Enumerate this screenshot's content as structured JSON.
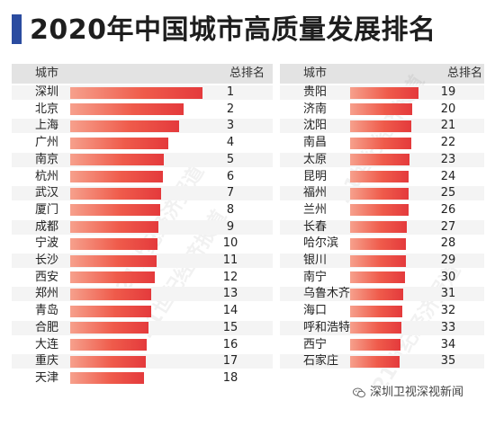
{
  "title": "2020年中国城市高质量发展排名",
  "chart_data": {
    "type": "bar",
    "orientation": "horizontal",
    "headers": {
      "city": "城市",
      "rank": "总排名"
    },
    "tables": [
      {
        "categories": [
          "深圳",
          "北京",
          "上海",
          "广州",
          "南京",
          "杭州",
          "武汉",
          "厦门",
          "成都",
          "宁波",
          "长沙",
          "西安",
          "郑州",
          "青岛",
          "合肥",
          "大连",
          "重庆",
          "天津"
        ],
        "ranks": [
          1,
          2,
          3,
          4,
          5,
          6,
          7,
          8,
          9,
          10,
          11,
          12,
          13,
          14,
          15,
          16,
          17,
          18
        ],
        "values": [
          100,
          86,
          82,
          74,
          71,
          70,
          69,
          68,
          67,
          66,
          65,
          64,
          61,
          61,
          59,
          58,
          57,
          56
        ]
      },
      {
        "categories": [
          "贵阳",
          "济南",
          "沈阳",
          "南昌",
          "太原",
          "昆明",
          "福州",
          "兰州",
          "长春",
          "哈尔滨",
          "银川",
          "南宁",
          "乌鲁木齐",
          "海口",
          "呼和浩特",
          "西宁",
          "石家庄"
        ],
        "ranks": [
          19,
          20,
          21,
          22,
          23,
          24,
          25,
          26,
          27,
          28,
          29,
          30,
          31,
          32,
          33,
          34,
          35
        ],
        "values": [
          100,
          91,
          90,
          89,
          87,
          86,
          86,
          85,
          83,
          82,
          82,
          80,
          78,
          76,
          75,
          74,
          73
        ]
      }
    ],
    "legend": "none",
    "grid": false
  },
  "watermark": "21世纪经济报道",
  "source": "深圳卫视深视新闻",
  "colors": {
    "bar_start": "#f6a08c",
    "bar_end": "#e43a3c",
    "header_bg": "#e3e3e3",
    "title_mark": "#2b4ca0"
  },
  "icons": {
    "source_icon": "wechat-icon"
  }
}
